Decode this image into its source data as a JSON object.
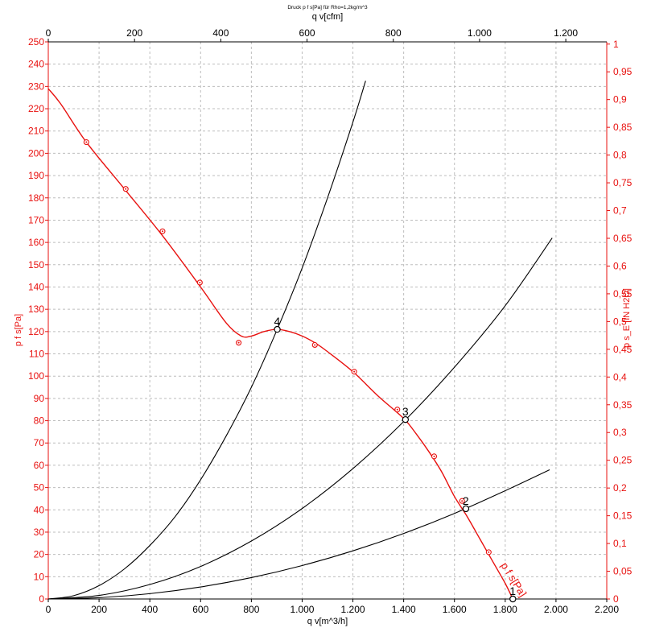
{
  "chart_data": {
    "type": "line",
    "title": "Druck p f s[Pa] für Rho=1,2kg/m^3",
    "xlabel": "q v[m^3/h]",
    "xlabel_top": "q v[cfm]",
    "ylabel": "p f s[Pa]",
    "ylabel_right": "p s_E [IN H2O]",
    "xlim": [
      0,
      2200
    ],
    "ylim": [
      0,
      250
    ],
    "xlim_top": [
      0,
      1295
    ],
    "ylim_right": [
      0,
      1.004
    ],
    "x_ticks": [
      "0",
      "200",
      "400",
      "600",
      "800",
      "1.000",
      "1.200",
      "1.400",
      "1.600",
      "1.800",
      "2.000",
      "2.200"
    ],
    "x_ticks_top": [
      "0",
      "200",
      "400",
      "600",
      "800",
      "1.000",
      "1.200"
    ],
    "y_ticks": [
      "0",
      "10",
      "20",
      "30",
      "40",
      "50",
      "60",
      "70",
      "80",
      "90",
      "100",
      "110",
      "120",
      "130",
      "140",
      "150",
      "160",
      "170",
      "180",
      "190",
      "200",
      "210",
      "220",
      "230",
      "240",
      "250"
    ],
    "y_ticks_right": [
      "0",
      "0,05",
      "0,1",
      "0,15",
      "0,2",
      "0,25",
      "0,3",
      "0,35",
      "0,4",
      "0,45",
      "0,5",
      "0,55",
      "0,6",
      "0,65",
      "0,7",
      "0,75",
      "0,8",
      "0,85",
      "0,9",
      "0,95",
      "1"
    ],
    "grid": true,
    "colors": {
      "fan_curve": "#e8110f",
      "system_curves": "#000000",
      "axis_left": "#e8110f",
      "axis_right": "#e8110f",
      "axis_bottom": "#000000",
      "axis_top": "#000000",
      "grid": "#bdbdbd"
    },
    "fan_curve": {
      "label": "p f s[Pa]",
      "x": [
        0,
        50,
        150,
        300,
        450,
        600,
        700,
        760,
        800,
        850,
        900,
        950,
        1000,
        1050,
        1100,
        1200,
        1300,
        1400,
        1450,
        1500,
        1550,
        1600,
        1650,
        1700,
        1750,
        1800,
        1830
      ],
      "y": [
        229,
        222,
        205,
        184,
        163,
        140,
        124,
        118,
        118,
        120,
        121,
        120,
        118,
        115,
        111,
        102,
        91,
        81,
        74,
        66,
        57,
        46,
        37,
        27,
        17,
        7,
        0
      ]
    },
    "fan_measured_points": {
      "x": [
        150,
        305,
        450,
        597,
        750,
        1050,
        1205,
        1375,
        1520,
        1630,
        1735
      ],
      "y": [
        205,
        184,
        165,
        142,
        115,
        114,
        102,
        85,
        64,
        44,
        21
      ]
    },
    "system_curves": [
      {
        "x": [
          0,
          100,
          200,
          300,
          400,
          500,
          600,
          700,
          800,
          900,
          1000,
          1100,
          1200,
          1250
        ],
        "y": [
          0,
          1.5,
          6,
          13.5,
          24,
          37,
          53.5,
          73,
          95,
          120.5,
          148.5,
          180,
          214,
          232.5
        ]
      },
      {
        "x": [
          0,
          200,
          400,
          600,
          800,
          1000,
          1200,
          1400,
          1600,
          1800,
          1985
        ],
        "y": [
          0,
          1.6,
          6.5,
          14.6,
          26,
          40.6,
          58.5,
          79.6,
          104,
          131.6,
          162
        ]
      },
      {
        "x": [
          0,
          200,
          400,
          600,
          800,
          1000,
          1200,
          1400,
          1600,
          1800,
          1975
        ],
        "y": [
          0,
          0.6,
          2.4,
          5.4,
          9.6,
          15,
          21.6,
          29.4,
          38.4,
          48.6,
          58
        ]
      }
    ],
    "operating_points": [
      {
        "label": "1",
        "x": 1830,
        "y": 0
      },
      {
        "label": "2",
        "x": 1645,
        "y": 40.5
      },
      {
        "label": "3",
        "x": 1407,
        "y": 80.5
      },
      {
        "label": "4",
        "x": 902,
        "y": 121
      }
    ]
  }
}
